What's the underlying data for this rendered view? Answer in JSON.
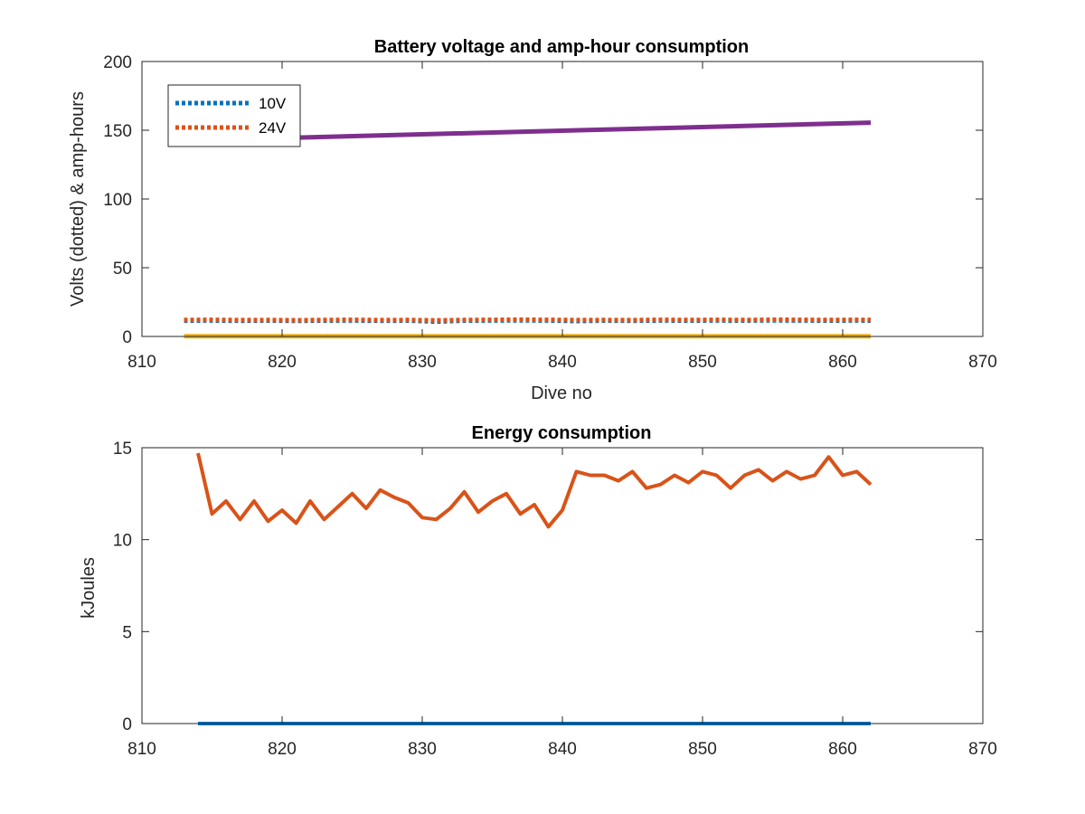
{
  "colors": {
    "blue": "#0072BD",
    "orange": "#D95319",
    "yellow": "#EDB120",
    "purple": "#7E2F8E",
    "axis": "#262626"
  },
  "chart_data": [
    {
      "type": "line",
      "title": "Battery voltage and amp-hour consumption",
      "xlabel": "Dive no",
      "ylabel": "Volts (dotted) & amp-hours",
      "xlim": [
        810,
        870
      ],
      "ylim": [
        0,
        200
      ],
      "xticks": [
        810,
        820,
        830,
        840,
        850,
        860,
        870
      ],
      "yticks": [
        0,
        50,
        100,
        150,
        200
      ],
      "grid": false,
      "legend": {
        "placement": "top-left",
        "entries": [
          "10V",
          "24V"
        ]
      },
      "series": [
        {
          "name": "10V",
          "style": "dotted",
          "color": "#0072BD",
          "x": [
            813,
            815,
            817,
            819,
            821,
            823,
            825,
            827,
            829,
            831,
            833,
            835,
            837,
            839,
            841,
            843,
            845,
            847,
            849,
            851,
            853,
            855,
            857,
            859,
            861,
            862
          ],
          "y": [
            11.5,
            11.6,
            11.4,
            11.5,
            11.3,
            11.5,
            11.6,
            11.4,
            11.5,
            10.8,
            11.5,
            11.6,
            11.7,
            11.6,
            11.2,
            11.5,
            11.4,
            11.6,
            11.5,
            11.6,
            11.5,
            11.7,
            11.6,
            11.5,
            11.6,
            11.5
          ]
        },
        {
          "name": "24V",
          "style": "dotted",
          "color": "#D95319",
          "x": [
            813,
            815,
            817,
            819,
            821,
            823,
            825,
            827,
            829,
            831,
            833,
            835,
            837,
            839,
            841,
            843,
            845,
            847,
            849,
            851,
            853,
            855,
            857,
            859,
            861,
            862
          ],
          "y": [
            12.0,
            12.1,
            11.9,
            12.0,
            11.8,
            12.0,
            12.1,
            11.9,
            12.0,
            11.7,
            12.0,
            12.1,
            12.2,
            12.1,
            11.9,
            12.0,
            11.9,
            12.1,
            12.0,
            12.1,
            12.0,
            12.2,
            12.1,
            12.0,
            12.1,
            12.0
          ]
        },
        {
          "style": "solid",
          "color": "#EDB120",
          "x": [
            813,
            862
          ],
          "y": [
            0.2,
            0.2
          ]
        },
        {
          "style": "solid",
          "color": "#7E2F8E",
          "x": [
            813,
            862
          ],
          "y": [
            142.5,
            155.5
          ]
        }
      ]
    },
    {
      "type": "line",
      "title": "Energy consumption",
      "xlabel": "",
      "ylabel": "kJoules",
      "xlim": [
        810,
        870
      ],
      "ylim": [
        0,
        15
      ],
      "xticks": [
        810,
        820,
        830,
        840,
        850,
        860,
        870
      ],
      "yticks": [
        0,
        5,
        10,
        15
      ],
      "grid": false,
      "series": [
        {
          "style": "solid",
          "color": "#D95319",
          "x": [
            814,
            815,
            816,
            817,
            818,
            819,
            820,
            821,
            822,
            823,
            824,
            825,
            826,
            827,
            828,
            829,
            830,
            831,
            832,
            833,
            834,
            835,
            836,
            837,
            838,
            839,
            840,
            841,
            842,
            843,
            844,
            845,
            846,
            847,
            848,
            849,
            850,
            851,
            852,
            853,
            854,
            855,
            856,
            857,
            858,
            859,
            860,
            861,
            862
          ],
          "y": [
            14.7,
            11.4,
            12.1,
            11.1,
            12.1,
            11.0,
            11.6,
            10.9,
            12.1,
            11.1,
            11.8,
            12.5,
            11.7,
            12.7,
            12.3,
            12.0,
            11.2,
            11.1,
            11.7,
            12.6,
            11.5,
            12.1,
            12.5,
            11.4,
            11.9,
            10.7,
            11.6,
            13.7,
            13.5,
            13.5,
            13.2,
            13.7,
            12.8,
            13.0,
            13.5,
            13.1,
            13.7,
            13.5,
            12.8,
            13.5,
            13.8,
            13.2,
            13.7,
            13.3,
            13.5,
            14.5,
            13.5,
            13.7,
            13.0
          ]
        },
        {
          "style": "solid",
          "color": "#0072BD",
          "x": [
            814,
            862
          ],
          "y": [
            0.0,
            0.0
          ]
        }
      ]
    }
  ]
}
